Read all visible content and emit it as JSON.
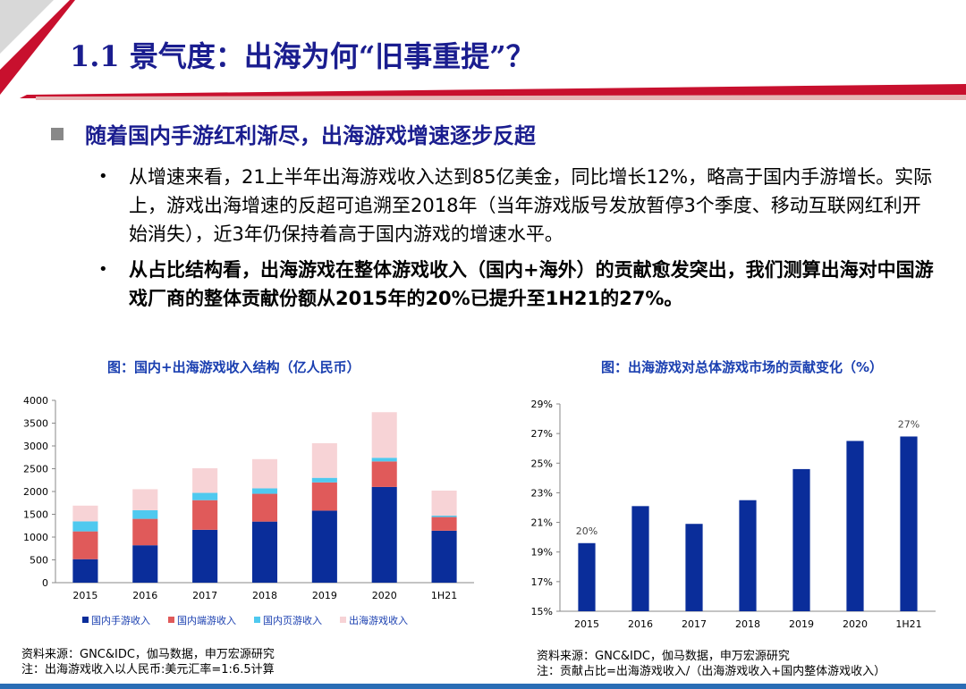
{
  "colors": {
    "title": "#1a1d8f",
    "accent_red": "#c8102e",
    "navy": "#0a2d9a",
    "red_bar": "#e05a5a",
    "cyan_bar": "#4fc9ef",
    "pink_bar": "#f7d3d6"
  },
  "header": {
    "title": "1.1 景气度：出海为何“旧事重提”？"
  },
  "section": {
    "heading": "随着国内手游红利渐尽，出海游戏增速逐步反超"
  },
  "bullets": [
    {
      "text": "从增速来看，21上半年出海游戏收入达到85亿美金，同比增长12%，略高于国内手游增长。实际上，游戏出海增速的反超可追溯至2018年（当年游戏版号发放暂停3个季度、移动互联网红利开始消失），近3年仍保持着高于国内游戏的增速水平。"
    },
    {
      "text": "从占比结构看，出海游戏在整体游戏收入（国内+海外）的贡献愈发突出，我们测算出海对中国游戏厂商的整体贡献份额从2015年的20%已提升至1H21的27%。"
    }
  ],
  "chart_data": [
    {
      "type": "bar",
      "stacked": true,
      "title": "图：国内+出海游戏收入结构（亿人民币）",
      "categories": [
        "2015",
        "2016",
        "2017",
        "2018",
        "2019",
        "2020",
        "1H21"
      ],
      "ylim": [
        0,
        4000
      ],
      "yticks": [
        "0",
        "500",
        "1000",
        "1500",
        "2000",
        "2500",
        "3000",
        "3500",
        "4000"
      ],
      "series": [
        {
          "name": "国内手游收入",
          "color": "#0a2d9a",
          "values": [
            515,
            820,
            1160,
            1340,
            1580,
            2100,
            1140
          ]
        },
        {
          "name": "国内端游收入",
          "color": "#e05a5a",
          "values": [
            610,
            580,
            650,
            610,
            620,
            560,
            300
          ]
        },
        {
          "name": "国内页游收入",
          "color": "#4fc9ef",
          "values": [
            220,
            190,
            160,
            120,
            100,
            80,
            30
          ]
        },
        {
          "name": "出海游戏收入",
          "color": "#f7d3d6",
          "values": [
            345,
            460,
            540,
            640,
            760,
            1000,
            550
          ]
        }
      ],
      "source": "资料来源：GNC&IDC，伽马数据，申万宏源研究",
      "note": "注：出海游戏收入以人民币:美元汇率=1:6.5计算"
    },
    {
      "type": "bar",
      "title": "图：出海游戏对总体游戏市场的贡献变化（%）",
      "categories": [
        "2015",
        "2016",
        "2017",
        "2018",
        "2019",
        "2020",
        "1H21"
      ],
      "values": [
        19.6,
        22.1,
        20.9,
        22.5,
        24.6,
        26.5,
        26.8
      ],
      "ylim": [
        15,
        29
      ],
      "yticks": [
        "15%",
        "17%",
        "19%",
        "21%",
        "23%",
        "25%",
        "27%",
        "29%"
      ],
      "data_labels": {
        "2015": "20%",
        "1H21": "27%"
      },
      "color": "#0a2d9a",
      "source": "资料来源：GNC&IDC，伽马数据，申万宏源研究",
      "note": "注：贡献占比=出海游戏收入/（出海游戏收入+国内整体游戏收入）"
    }
  ]
}
